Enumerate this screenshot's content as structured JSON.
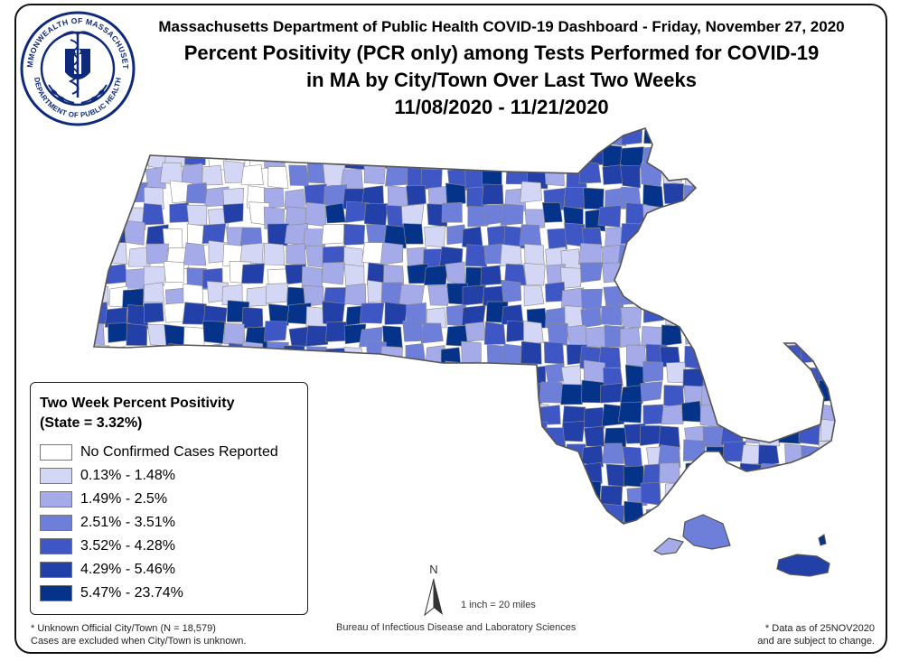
{
  "header": {
    "line1": "Massachusetts Department of Public Health COVID-19 Dashboard - Friday, November 27, 2020",
    "line2": "Percent Positivity (PCR only) among Tests Performed for COVID-19",
    "line3": "in MA by City/Town Over Last Two Weeks",
    "line4": "11/08/2020 - 11/21/2020"
  },
  "seal": {
    "ring_text": "COMMONWEALTH OF MASSACHUSETTS · DEPARTMENT OF PUBLIC HEALTH",
    "color": "#0f2a7a"
  },
  "legend": {
    "title_line1": "Two Week Percent Positivity",
    "title_line2": "(State = 3.32%)",
    "classes": [
      {
        "label": "No Confirmed Cases Reported",
        "color": "#ffffff"
      },
      {
        "label": "0.13% - 1.48%",
        "color": "#d4d6f5"
      },
      {
        "label": "1.49% - 2.5%",
        "color": "#a4abe8"
      },
      {
        "label": "2.51% - 3.51%",
        "color": "#6e7fd9"
      },
      {
        "label": "3.52% - 4.28%",
        "color": "#3f57c4"
      },
      {
        "label": "4.29% - 5.46%",
        "color": "#2240a8"
      },
      {
        "label": "5.47% - 23.74%",
        "color": "#06338a"
      }
    ]
  },
  "map": {
    "outline_color": "#555555",
    "town_border_color": "#8a8a8a"
  },
  "north_arrow": {
    "label": "N"
  },
  "scale_text": "1 inch = 20 miles",
  "bureau_text": "Bureau of Infectious Disease and Laboratory Sciences",
  "footnote_left": {
    "line1": "* Unknown Official City/Town (N = 18,579)",
    "line2": "Cases are excluded when City/Town is unknown."
  },
  "footnote_right": {
    "line1": "* Data as of 25NOV2020",
    "line2": "and are subject to change."
  }
}
